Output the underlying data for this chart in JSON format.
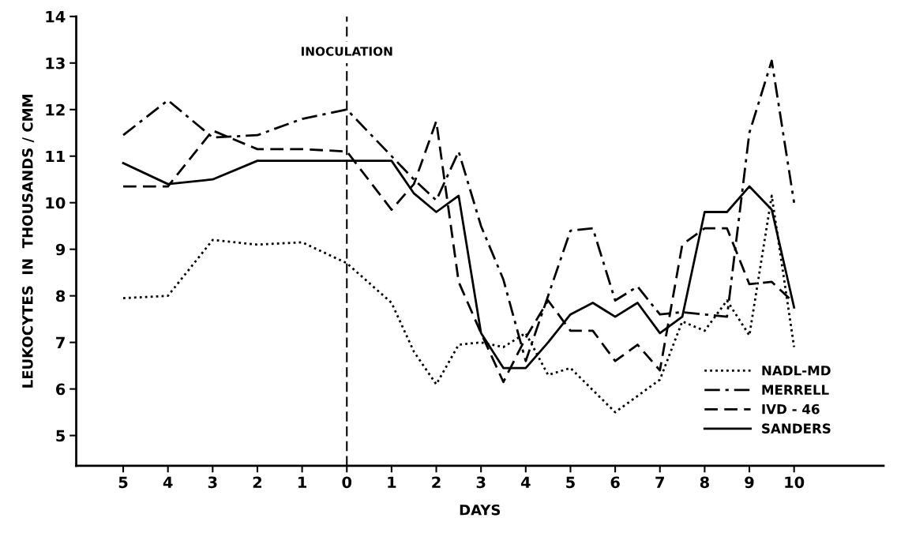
{
  "chart_data": {
    "type": "line",
    "xlabel": "DAYS",
    "ylabel": "LEUKOCYTES  IN  THOUSANDS / CMM",
    "xlim": [
      -6.05,
      12
    ],
    "ylim": [
      4.35,
      14
    ],
    "xticks": [
      {
        "value": -5,
        "label": "5"
      },
      {
        "value": -4,
        "label": "4"
      },
      {
        "value": -3,
        "label": "3"
      },
      {
        "value": -2,
        "label": "2"
      },
      {
        "value": -1,
        "label": "1"
      },
      0,
      1,
      2,
      3,
      4,
      5,
      6,
      7,
      8,
      9,
      10
    ],
    "yticks": [
      5,
      6,
      7,
      8,
      9,
      10,
      11,
      12,
      13,
      14
    ],
    "grid": false,
    "legend": "bottom right",
    "marker": "none",
    "ref_lines": [
      {
        "axis": "x",
        "value": 0,
        "label": "INOCULATION",
        "color": "#000000",
        "line_style": "dashed"
      }
    ],
    "series": [
      {
        "name": "NADL-MD",
        "color": "#000000",
        "line_style": "dotted",
        "x": [
          -5,
          -4,
          -3,
          -2,
          -1,
          0,
          1,
          1.5,
          2,
          2.5,
          3,
          3.5,
          4,
          4.5,
          5,
          6,
          7,
          7.5,
          8,
          8.5,
          9,
          9.5,
          10
        ],
        "values": [
          7.95,
          8.0,
          9.2,
          9.1,
          9.15,
          8.7,
          7.85,
          6.8,
          6.1,
          6.95,
          7.0,
          6.9,
          7.2,
          6.3,
          6.45,
          5.5,
          6.2,
          7.45,
          7.25,
          7.9,
          7.15,
          10.15,
          6.9
        ]
      },
      {
        "name": "MERRELL",
        "color": "#000000",
        "line_style": "dashdot",
        "x": [
          -5,
          -4,
          -3,
          -2,
          -1,
          0,
          1.5,
          2,
          2.5,
          3,
          3.5,
          4,
          5,
          5.5,
          6,
          6.5,
          7,
          7.5,
          8,
          8.5,
          9,
          9.5,
          10
        ],
        "values": [
          11.45,
          12.2,
          11.4,
          11.45,
          11.8,
          12.0,
          10.5,
          10.05,
          11.1,
          9.5,
          8.35,
          6.6,
          9.4,
          9.45,
          7.9,
          8.2,
          7.6,
          7.65,
          7.6,
          7.55,
          11.5,
          13.05,
          10.0
        ]
      },
      {
        "name": "IVD - 46",
        "color": "#000000",
        "line_style": "dashed",
        "x": [
          -5,
          -4,
          -3,
          -2,
          -1,
          0,
          1,
          1.5,
          2,
          2.5,
          3,
          3.5,
          4,
          4.5,
          5,
          5.5,
          6,
          6.5,
          7,
          7.5,
          8,
          8.5,
          9,
          9.5,
          10
        ],
        "values": [
          10.35,
          10.35,
          11.55,
          11.15,
          11.15,
          11.1,
          9.85,
          10.4,
          11.75,
          8.3,
          7.2,
          6.15,
          7.1,
          7.9,
          7.25,
          7.25,
          6.6,
          6.95,
          6.4,
          9.1,
          9.45,
          9.45,
          8.25,
          8.3,
          7.85
        ]
      },
      {
        "name": "SANDERS",
        "color": "#000000",
        "line_style": "solid",
        "x": [
          -5,
          -4,
          -3,
          -2,
          -1,
          0,
          1,
          1.5,
          2,
          2.5,
          3,
          3.5,
          4,
          4.5,
          5,
          5.5,
          6,
          6.5,
          7,
          7.5,
          8,
          8.5,
          9,
          9.5,
          10
        ],
        "values": [
          10.85,
          10.4,
          10.5,
          10.9,
          10.9,
          10.9,
          10.9,
          10.2,
          9.8,
          10.15,
          7.2,
          6.45,
          6.45,
          7.0,
          7.6,
          7.85,
          7.55,
          7.85,
          7.2,
          7.55,
          9.8,
          9.8,
          10.35,
          9.85,
          7.75
        ]
      }
    ]
  }
}
